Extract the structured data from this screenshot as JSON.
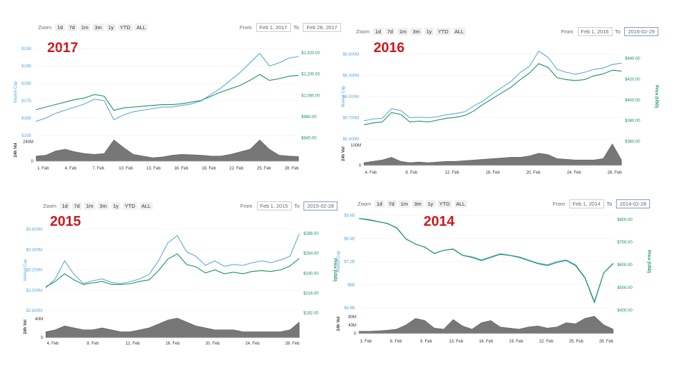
{
  "controls": {
    "zoom_label": "Zoom",
    "zoom_buttons": [
      "1d",
      "7d",
      "1m",
      "3m",
      "1y",
      "YTD",
      "ALL"
    ],
    "from_label": "From",
    "to_label": "To"
  },
  "colors": {
    "market_cap": "#5aa8dc",
    "price": "#17935c",
    "volume": "#777777"
  },
  "chart_data": [
    {
      "type": "line",
      "year": "2017",
      "from": "Feb 1, 2017",
      "to": "Feb 28, 2017",
      "to_active": false,
      "ylabel_left": "Market Cap",
      "ylabel_right": "",
      "ylabel_volume": "24h Vol",
      "left_ticks": [
        "$20B",
        "$19B",
        "$18B",
        "$17B",
        "$16B",
        "$15B"
      ],
      "right_ticks": [
        "$1,320.00",
        "$1,200.00",
        "$1,080.00",
        "$960.00",
        "$840.00"
      ],
      "volume_ticks": [
        "240M",
        "0"
      ],
      "x_ticks": [
        "1. Feb",
        "4. Feb",
        "7. Feb",
        "10. Feb",
        "13. Feb",
        "16. Feb",
        "19. Feb",
        "22. Feb",
        "25. Feb",
        "28. Feb"
      ],
      "series": [
        {
          "key": "market_cap",
          "values": [
            15.9,
            16.1,
            16.4,
            16.6,
            16.8,
            17.0,
            17.3,
            17.2,
            16.0,
            16.3,
            16.5,
            16.6,
            16.7,
            16.8,
            16.8,
            16.9,
            17.0,
            17.2,
            17.6,
            18.0,
            18.5,
            19.0,
            19.6,
            20.2,
            19.4,
            19.6,
            19.9,
            20.0
          ]
        },
        {
          "key": "price",
          "values": [
            975,
            990,
            1005,
            1020,
            1035,
            1045,
            1065,
            1055,
            970,
            985,
            990,
            995,
            1000,
            1005,
            1005,
            1010,
            1020,
            1030,
            1055,
            1080,
            1100,
            1120,
            1150,
            1185,
            1150,
            1160,
            1175,
            1180
          ]
        },
        {
          "key": "volume",
          "values": [
            60,
            70,
            120,
            140,
            110,
            90,
            80,
            90,
            250,
            160,
            80,
            60,
            40,
            50,
            70,
            80,
            75,
            70,
            60,
            60,
            80,
            110,
            140,
            250,
            140,
            70,
            60,
            55
          ]
        }
      ]
    },
    {
      "type": "line",
      "year": "2016",
      "from": "Feb 1, 2016",
      "to": "2016-02-29",
      "to_active": true,
      "ylabel_left": "Market Cap",
      "ylabel_right": "Price (USD)",
      "ylabel_volume": "24h Vol",
      "left_ticks": [
        "$6.600M",
        "$6.300M",
        "$6.000M",
        "$5.700M",
        "$5.400M"
      ],
      "right_ticks": [
        "$440.00",
        "$420.00",
        "$400.00",
        "$380.00",
        "$360.00"
      ],
      "volume_ticks": [
        "100M",
        "0"
      ],
      "x_ticks": [
        "4. Feb",
        "8. Feb",
        "12. Feb",
        "16. Feb",
        "20. Feb",
        "24. Feb",
        "28. Feb"
      ],
      "series": [
        {
          "key": "market_cap",
          "values": [
            5650,
            5680,
            5690,
            5850,
            5820,
            5700,
            5710,
            5700,
            5720,
            5750,
            5770,
            5800,
            5900,
            5980,
            6100,
            6200,
            6300,
            6450,
            6550,
            6800,
            6700,
            6500,
            6450,
            6420,
            6450,
            6500,
            6520,
            6580,
            6600
          ]
        },
        {
          "key": "price",
          "values": [
            370,
            372,
            373,
            383,
            381,
            373,
            374,
            373,
            375,
            377,
            378,
            380,
            385,
            392,
            398,
            404,
            410,
            418,
            425,
            435,
            431,
            420,
            418,
            417,
            418,
            422,
            424,
            428,
            427
          ]
        },
        {
          "key": "volume",
          "values": [
            20,
            30,
            40,
            60,
            30,
            20,
            25,
            20,
            25,
            30,
            30,
            35,
            40,
            45,
            50,
            55,
            60,
            60,
            70,
            90,
            80,
            50,
            45,
            40,
            40,
            40,
            50,
            160,
            40
          ]
        }
      ]
    },
    {
      "type": "line",
      "year": "2015",
      "from": "Feb 1, 2015",
      "to": "2015-02-28",
      "to_active": true,
      "ylabel_left": "Market Cap",
      "ylabel_right": "Price (USD)",
      "ylabel_volume": "24h Vol",
      "left_ticks": [
        "$3.600M",
        "$3.400M",
        "$3.200M",
        "$3.000M",
        "$2.800M"
      ],
      "right_ticks": [
        "$288.00",
        "$264.00",
        "$240.00",
        "$216.00",
        "$192.00"
      ],
      "volume_ticks": [
        "40M",
        "0"
      ],
      "x_ticks": [
        "4. Feb",
        "8. Feb",
        "12. Feb",
        "16. Feb",
        "20. Feb",
        "24. Feb",
        "28. Feb"
      ],
      "series": [
        {
          "key": "market_cap",
          "values": [
            3000,
            3100,
            3300,
            3150,
            3050,
            3080,
            3100,
            3060,
            3050,
            3070,
            3100,
            3150,
            3300,
            3500,
            3580,
            3400,
            3350,
            3250,
            3300,
            3240,
            3260,
            3250,
            3280,
            3300,
            3280,
            3310,
            3350,
            3600
          ]
        },
        {
          "key": "price",
          "values": [
            219,
            226,
            236,
            228,
            222,
            224,
            226,
            222,
            222,
            223,
            226,
            228,
            240,
            255,
            262,
            248,
            245,
            237,
            241,
            236,
            238,
            236,
            239,
            240,
            239,
            241,
            246,
            256
          ]
        },
        {
          "key": "volume",
          "values": [
            15,
            20,
            30,
            25,
            20,
            20,
            25,
            20,
            15,
            15,
            20,
            25,
            35,
            45,
            50,
            40,
            30,
            25,
            20,
            20,
            20,
            15,
            15,
            15,
            15,
            15,
            20,
            40
          ]
        }
      ]
    },
    {
      "type": "line",
      "year": "2014",
      "from": "Feb 1, 2014",
      "to": "2014-02-28",
      "to_active": true,
      "ylabel_left": "Market Cap",
      "ylabel_right": "Price (USD)",
      "ylabel_volume": "24h Vol",
      "left_ticks": [
        "$9.6B",
        "$8.4B",
        "$7.2B",
        "$6B",
        "$4.8B"
      ],
      "right_ticks": [
        "$800.00",
        "$700.00",
        "$600.00",
        "$500.00",
        "$400.00"
      ],
      "volume_ticks": [
        "80M",
        "40M",
        "0"
      ],
      "x_ticks": [
        "3. Feb",
        "6. Feb",
        "9. Feb",
        "13. Feb",
        "16. Feb",
        "19. Feb",
        "22. Feb",
        "25. Feb",
        "28. Feb"
      ],
      "series": [
        {
          "key": "market_cap",
          "values": [
            10.2,
            10.1,
            10.0,
            9.9,
            9.6,
            8.9,
            8.6,
            8.4,
            8.0,
            8.2,
            8.3,
            7.9,
            7.8,
            7.6,
            7.8,
            8.0,
            7.9,
            7.8,
            7.6,
            7.4,
            7.3,
            7.5,
            7.6,
            7.3,
            6.5,
            5.0,
            6.8,
            7.4
          ]
        },
        {
          "key": "price",
          "values": [
            830,
            825,
            815,
            805,
            785,
            730,
            705,
            690,
            660,
            675,
            680,
            650,
            640,
            625,
            640,
            655,
            650,
            640,
            625,
            610,
            600,
            615,
            625,
            600,
            540,
            420,
            565,
            610
          ]
        },
        {
          "key": "volume",
          "values": [
            10,
            10,
            12,
            15,
            20,
            40,
            70,
            60,
            25,
            20,
            65,
            35,
            20,
            50,
            60,
            30,
            25,
            20,
            30,
            35,
            25,
            30,
            50,
            45,
            70,
            80,
            40,
            20
          ]
        }
      ]
    }
  ]
}
